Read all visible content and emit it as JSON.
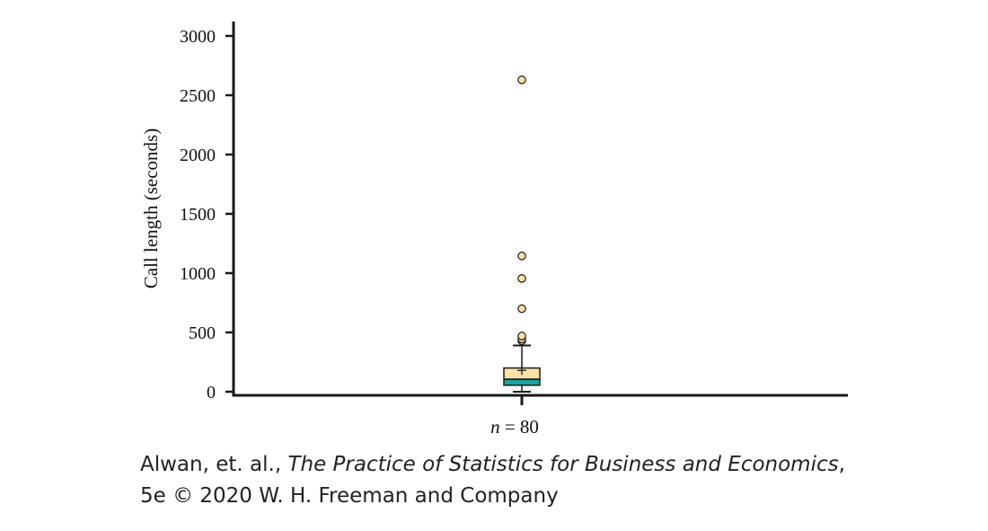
{
  "chart_data": {
    "type": "box",
    "ylabel": "Call length (seconds)",
    "ylim": [
      0,
      3000
    ],
    "yticks": [
      0,
      500,
      1000,
      1500,
      2000,
      2500,
      3000
    ],
    "category_label_prefix": "n",
    "n": 80,
    "box": {
      "whisker_low": 0,
      "q1": 55,
      "median": 105,
      "q3": 200,
      "whisker_high": 390,
      "mean": 180
    },
    "outliers": [
      430,
      445,
      470,
      700,
      955,
      1145,
      2630
    ],
    "colors": {
      "lower_box": "#1aa3a0",
      "upper_box": "#fde2a7",
      "outlier": "#fde2a7",
      "axis": "#1a1a1a"
    },
    "grid": false,
    "legend": "none"
  },
  "credit": {
    "authors": "Alwan, et. al., ",
    "book_title": "The Practice of Statistics for Business and Economics",
    "after_title": ",",
    "line2": "5e © 2020 W. H. Freeman and Company"
  }
}
